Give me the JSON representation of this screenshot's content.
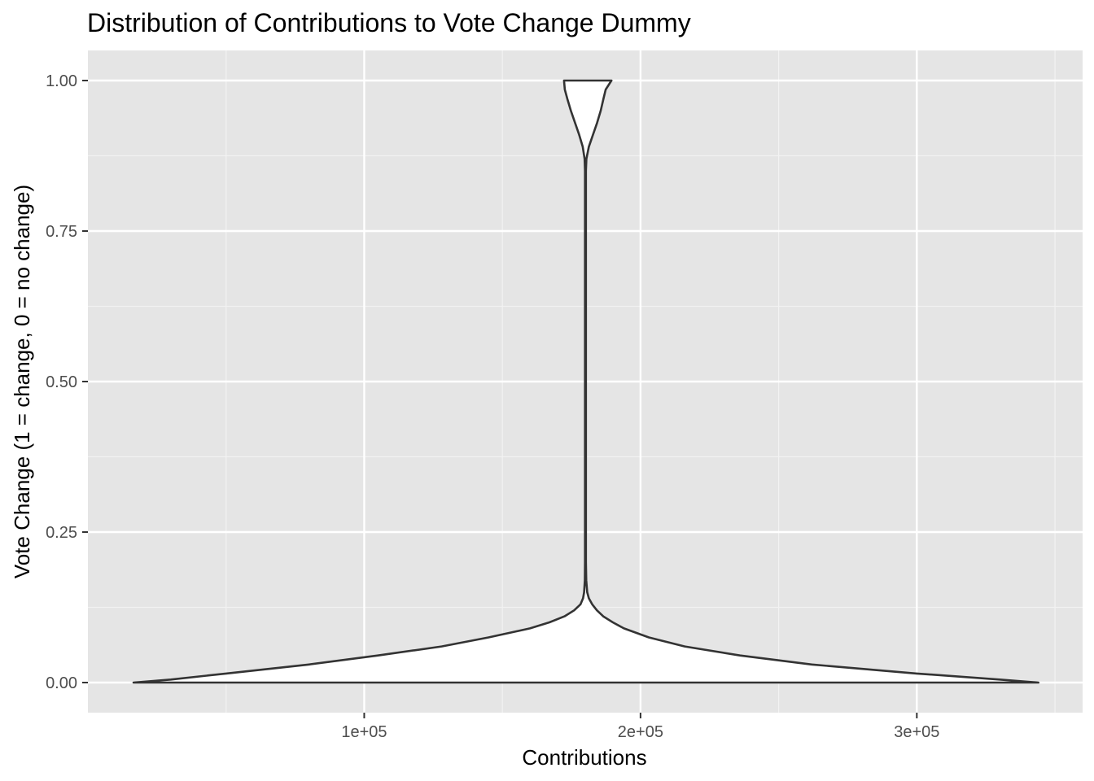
{
  "chart_data": {
    "type": "violin",
    "orientation": "horizontal",
    "title": "Distribution of Contributions to Vote Change Dummy",
    "xlabel": "Contributions",
    "ylabel": "Vote Change (1 = change, 0 = no change)",
    "xlim": [
      0,
      360000
    ],
    "ylim": [
      -0.05,
      1.05
    ],
    "x_ticks": [
      {
        "value": 100000,
        "label": "1e+05"
      },
      {
        "value": 200000,
        "label": "2e+05"
      },
      {
        "value": 300000,
        "label": "3e+05"
      }
    ],
    "y_ticks": [
      {
        "value": 0,
        "label": "0.00"
      },
      {
        "value": 0.25,
        "label": "0.25"
      },
      {
        "value": 0.5,
        "label": "0.50"
      },
      {
        "value": 0.75,
        "label": "0.75"
      },
      {
        "value": 1,
        "label": "1.00"
      }
    ],
    "grid": true,
    "violin": {
      "center": 180000,
      "outline": [
        [
          0.0,
          16500,
          344000
        ],
        [
          0.005,
          30000,
          330000
        ],
        [
          0.015,
          50000,
          300000
        ],
        [
          0.03,
          80000,
          262000
        ],
        [
          0.045,
          105000,
          236000
        ],
        [
          0.06,
          128000,
          216000
        ],
        [
          0.075,
          145000,
          203000
        ],
        [
          0.09,
          160000,
          194000
        ],
        [
          0.1,
          167000,
          190000
        ],
        [
          0.11,
          172500,
          186500
        ],
        [
          0.12,
          176000,
          184200
        ],
        [
          0.13,
          178300,
          182500
        ],
        [
          0.14,
          179200,
          181300
        ],
        [
          0.15,
          179600,
          180700
        ],
        [
          0.17,
          179850,
          180350
        ],
        [
          0.2,
          179900,
          180250
        ],
        [
          0.5,
          179900,
          180250
        ],
        [
          0.85,
          179900,
          180250
        ],
        [
          0.87,
          179750,
          180400
        ],
        [
          0.89,
          179100,
          181300
        ],
        [
          0.91,
          177800,
          182800
        ],
        [
          0.93,
          176300,
          184300
        ],
        [
          0.95,
          174800,
          185600
        ],
        [
          0.97,
          173500,
          186600
        ],
        [
          0.985,
          172600,
          187400
        ],
        [
          1.0,
          172300,
          189500
        ]
      ],
      "fill": "#ffffff",
      "stroke": "#333333"
    }
  },
  "colors": {
    "panel_background": "#e5e5e5",
    "grid_major": "#ffffff",
    "grid_minor": "#f2f2f2",
    "tick_text": "#4d4d4d",
    "tick_mark": "#333333"
  }
}
